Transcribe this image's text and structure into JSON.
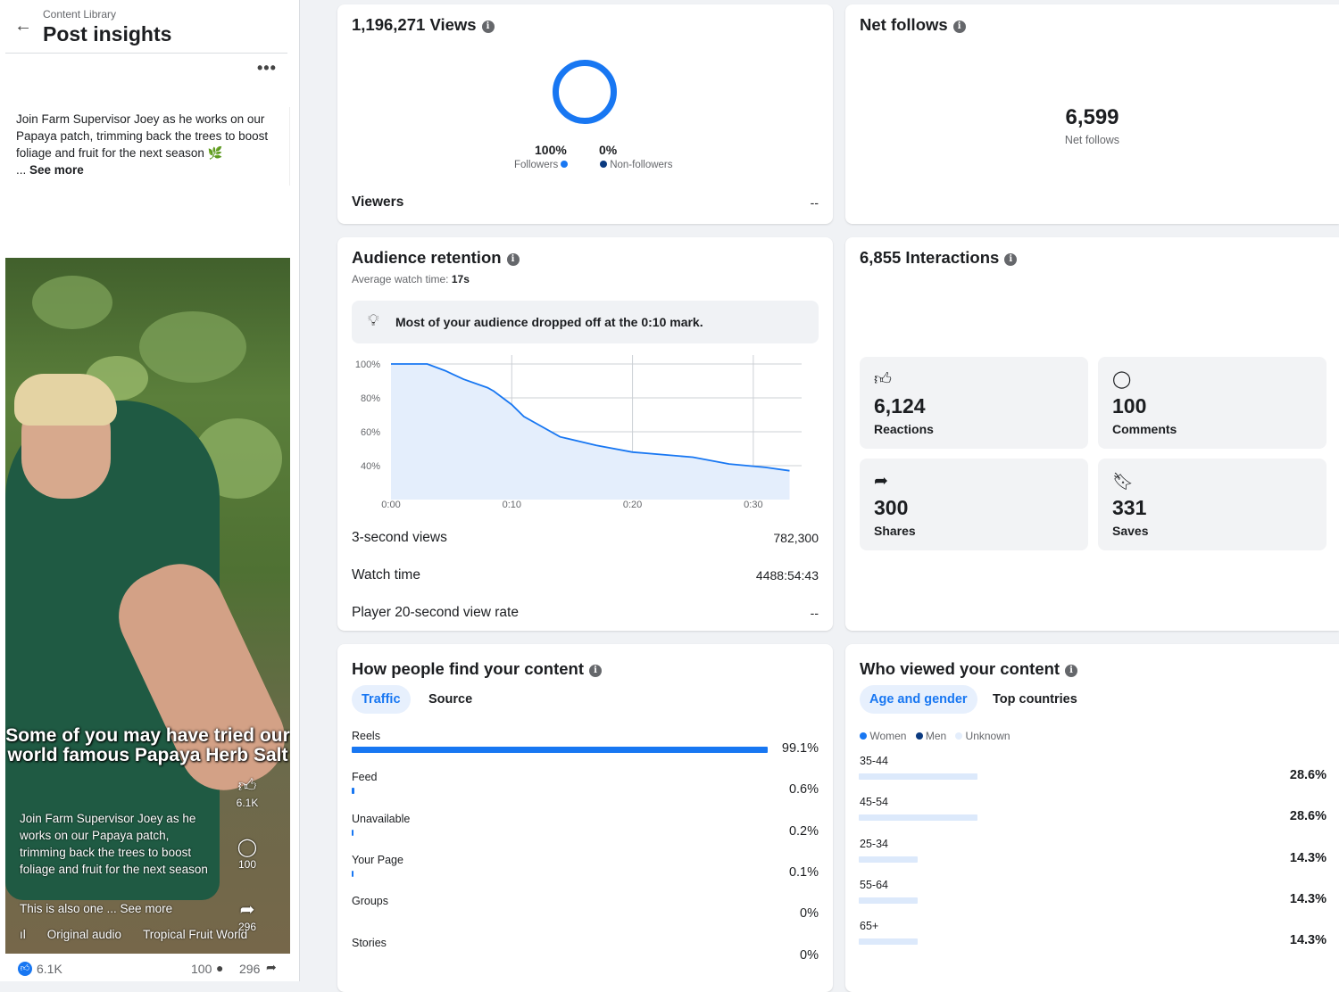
{
  "header": {
    "breadcrumb": "Content Library",
    "title": "Post insights",
    "more": "•••"
  },
  "post": {
    "description": "Join Farm Supervisor Joey as he works on our Papaya patch, trimming back the trees to boost foliage and fruit for the next season 🌿",
    "see_more_prefix": "... ",
    "see_more": "See more",
    "video": {
      "caption": "Some of you may have tried our world famous Papaya Herb Salt",
      "text": "Join Farm Supervisor Joey as he works on our Papaya patch, trimming back the trees to boost foliage and fruit for the next season",
      "also": "This is also one ... See more",
      "audio": "Original audio",
      "account": "Tropical Fruit World",
      "likes": "6.1K",
      "comments": "100",
      "shares": "296"
    },
    "footer": {
      "likes": "6.1K",
      "comments": "100",
      "shares": "296"
    }
  },
  "views": {
    "title": "1,196,271 Views",
    "followers_pct": "100%",
    "followers_label": "Followers",
    "nonfollowers_pct": "0%",
    "nonfollowers_label": "Non-followers",
    "viewers_label": "Viewers",
    "viewers_value": "--",
    "followers_color": "#1877f2",
    "nonfollowers_color": "#0b3a80"
  },
  "net_follows": {
    "title": "Net follows",
    "value": "6,599",
    "label": "Net follows"
  },
  "retention": {
    "title": "Audience retention",
    "avg_label": "Average watch time:",
    "avg_value": "17s",
    "tip": "Most of your audience dropped off at the 0:10 mark.",
    "rows": [
      {
        "label": "3-second views",
        "value": "782,300"
      },
      {
        "label": "Watch time",
        "value": "4488:54:43"
      },
      {
        "label": "Player 20-second view rate",
        "value": "--"
      }
    ]
  },
  "chart_data": {
    "type": "area",
    "title": "",
    "xlabel": "",
    "ylabel": "",
    "x_ticks": [
      "0:00",
      "0:10",
      "0:20",
      "0:30"
    ],
    "y_ticks": [
      "100%",
      "80%",
      "60%",
      "40%"
    ],
    "ylim": [
      20,
      100
    ],
    "xlim": [
      0,
      34
    ],
    "grid": true,
    "series": [
      {
        "x": [
          0,
          3,
          4.5,
          6,
          8,
          8.5,
          10,
          11,
          14,
          17,
          20,
          25,
          28,
          31,
          33
        ],
        "y": [
          100,
          100,
          96,
          91,
          86,
          84,
          76,
          69,
          57,
          52,
          48,
          45,
          41,
          39,
          37
        ]
      }
    ],
    "color": "#1877f2",
    "fill": "#e4eefc"
  },
  "interactions": {
    "title": "6,855 Interactions",
    "tiles": [
      {
        "icon": "thumbs-up-icon",
        "glyph": "👍︎",
        "value": "6,124",
        "label": "Reactions"
      },
      {
        "icon": "comment-icon",
        "glyph": "◯",
        "value": "100",
        "label": "Comments"
      },
      {
        "icon": "share-icon",
        "glyph": "➦",
        "value": "300",
        "label": "Shares"
      },
      {
        "icon": "bookmark-icon",
        "glyph": "🔖︎",
        "value": "331",
        "label": "Saves"
      }
    ]
  },
  "find": {
    "title": "How people find your content",
    "tabs": [
      "Traffic",
      "Source"
    ],
    "items": [
      {
        "label": "Reels",
        "value": "99.1%",
        "pct": 99.1
      },
      {
        "label": "Feed",
        "value": "0.6%",
        "pct": 0.6
      },
      {
        "label": "Unavailable",
        "value": "0.2%",
        "pct": 0.2
      },
      {
        "label": "Your Page",
        "value": "0.1%",
        "pct": 0.1
      },
      {
        "label": "Groups",
        "value": "0%",
        "pct": 0
      },
      {
        "label": "Stories",
        "value": "0%",
        "pct": 0
      }
    ]
  },
  "who": {
    "title": "Who viewed your content",
    "tabs": [
      "Age and gender",
      "Top countries"
    ],
    "legend": [
      {
        "label": "Women",
        "color": "#1877f2"
      },
      {
        "label": "Men",
        "color": "#0b3a80"
      },
      {
        "label": "Unknown",
        "color": "#e4eefc"
      }
    ],
    "items": [
      {
        "label": "35-44",
        "value": "28.6%",
        "pct": 28.6
      },
      {
        "label": "45-54",
        "value": "28.6%",
        "pct": 28.6
      },
      {
        "label": "25-34",
        "value": "14.3%",
        "pct": 14.3
      },
      {
        "label": "55-64",
        "value": "14.3%",
        "pct": 14.3
      },
      {
        "label": "65+",
        "value": "14.3%",
        "pct": 14.3
      }
    ]
  }
}
